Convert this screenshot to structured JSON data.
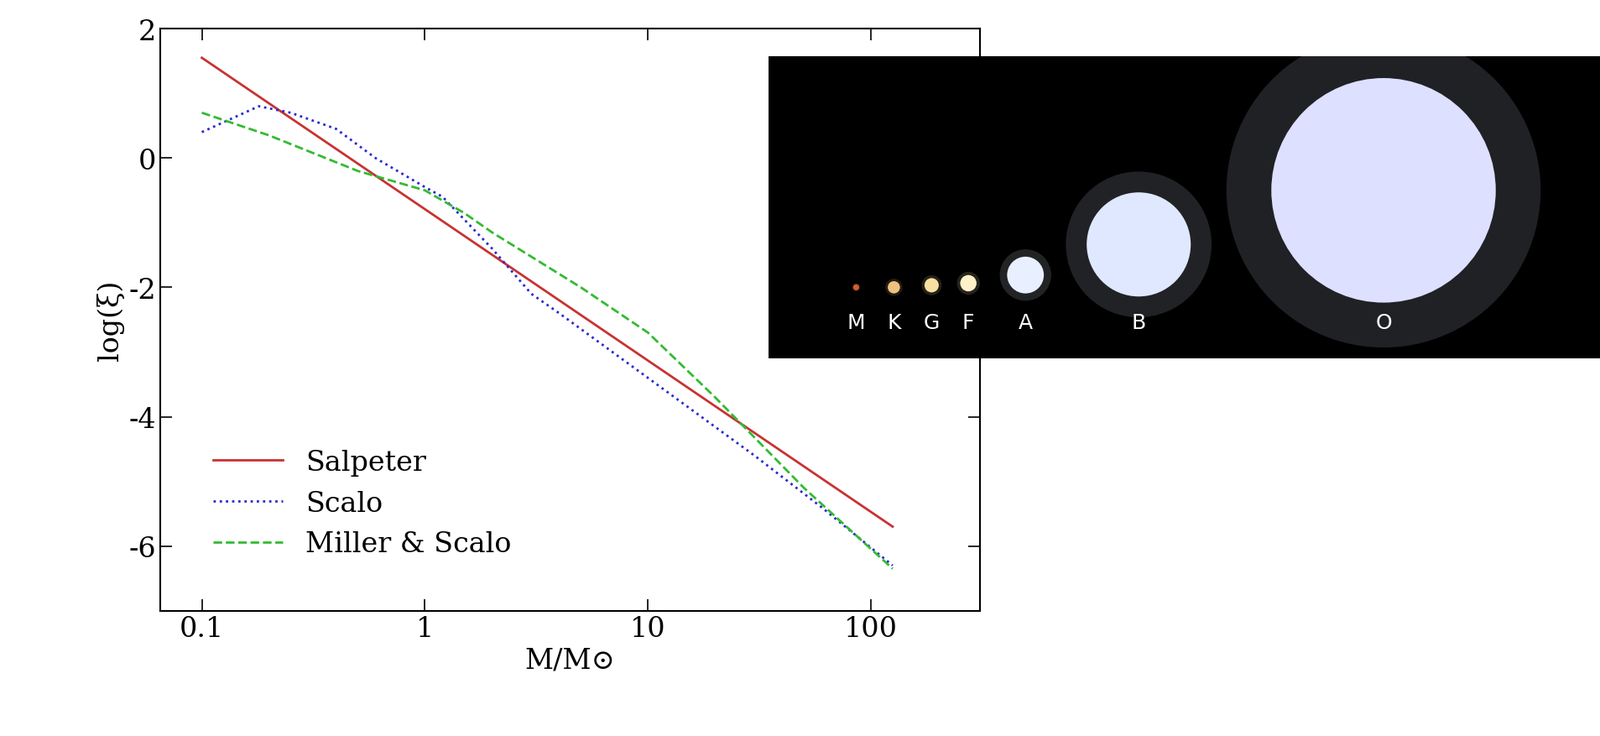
{
  "chart_data": {
    "type": "line",
    "x_label": "M/M⊙",
    "y_label": "log(ξ)",
    "log": "x",
    "xlim": [
      0.065,
      307
    ],
    "ylim": [
      -7,
      2
    ],
    "xticks": [
      {
        "value": 0.1,
        "label": "0.1"
      },
      {
        "value": 1,
        "label": "1"
      },
      {
        "value": 10,
        "label": "10"
      },
      {
        "value": 100,
        "label": "100"
      }
    ],
    "yticks": [
      -6,
      -4,
      -2,
      0,
      2
    ],
    "legend": "lower left",
    "series": [
      {
        "name": "Salpeter",
        "color": "#c83232",
        "line_style": "solid",
        "x": [
          0.1,
          125
        ],
        "values": [
          1.55,
          -5.7
        ]
      },
      {
        "name": "Scalo",
        "color": "#2a2ad0",
        "line_style": "dotted",
        "x": [
          0.1,
          0.18,
          0.25,
          0.4,
          0.6,
          1,
          1.2,
          2,
          3,
          4,
          10,
          30,
          60,
          125
        ],
        "values": [
          0.4,
          0.8,
          0.7,
          0.45,
          0.0,
          -0.45,
          -0.6,
          -1.4,
          -2.1,
          -2.4,
          -3.4,
          -4.6,
          -5.4,
          -6.3
        ]
      },
      {
        "name": "Miller & Scalo",
        "color": "#33bb33",
        "line_style": "dashed",
        "x": [
          0.1,
          0.2,
          0.5,
          1,
          1.5,
          2,
          5,
          10,
          20,
          50,
          125
        ],
        "values": [
          0.7,
          0.35,
          -0.2,
          -0.5,
          -0.85,
          -1.15,
          -2.0,
          -2.7,
          -3.7,
          -5.1,
          -6.35
        ]
      }
    ]
  },
  "inset": {
    "labels": [
      "M",
      "K",
      "G",
      "F",
      "A",
      "B",
      "O"
    ]
  }
}
